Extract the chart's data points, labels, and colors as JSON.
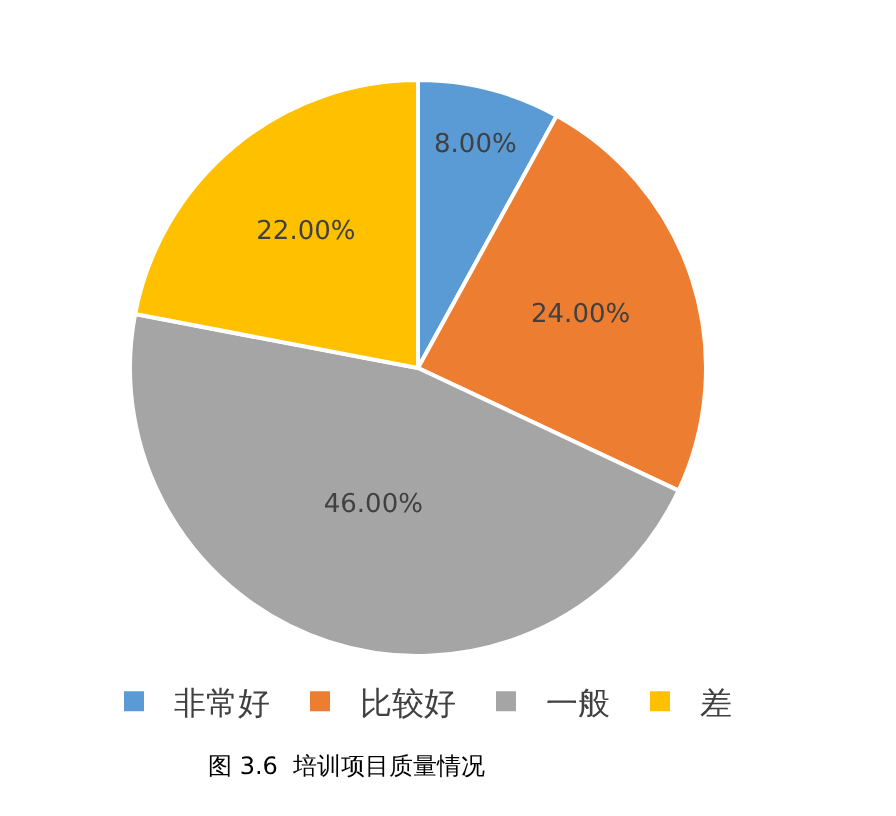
{
  "chart_data": {
    "type": "pie",
    "categories": [
      "非常好",
      "比较好",
      "一般",
      "差"
    ],
    "values": [
      8,
      24,
      46,
      22
    ],
    "colors": [
      "#5b9bd5",
      "#ed7d31",
      "#a5a5a5",
      "#ffc000"
    ],
    "value_labels": [
      "8.00%",
      "24.00%",
      "46.00%",
      "22.00%"
    ],
    "legend": "bottom",
    "annotations": [
      "图 3.6  培训项目质量情况"
    ]
  }
}
